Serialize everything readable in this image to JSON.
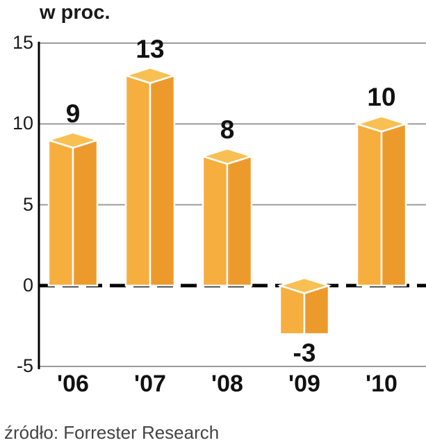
{
  "source": "źródło: Forrester Research",
  "chart_data": {
    "type": "bar",
    "title": "w proc.",
    "categories": [
      "'06",
      "'07",
      "'08",
      "'09",
      "'10"
    ],
    "values": [
      9,
      13,
      8,
      -3,
      10
    ],
    "xlabel": "",
    "ylabel": "w proc.",
    "ylim": [
      -5,
      15
    ],
    "yticks": [
      15,
      10,
      5,
      0,
      -5
    ],
    "grid": true,
    "legend": false,
    "source": "źródło: Forrester Research",
    "bar_colors": {
      "left_face": "#F6AE3E",
      "right_face": "#ED9A2D",
      "top_face": "#F8C053",
      "outline": "#FFFFFF"
    },
    "grid_color": "#9B9B9B",
    "axis_color": "#000000",
    "zero_line": {
      "style": "dashed",
      "color": "#000000"
    }
  }
}
